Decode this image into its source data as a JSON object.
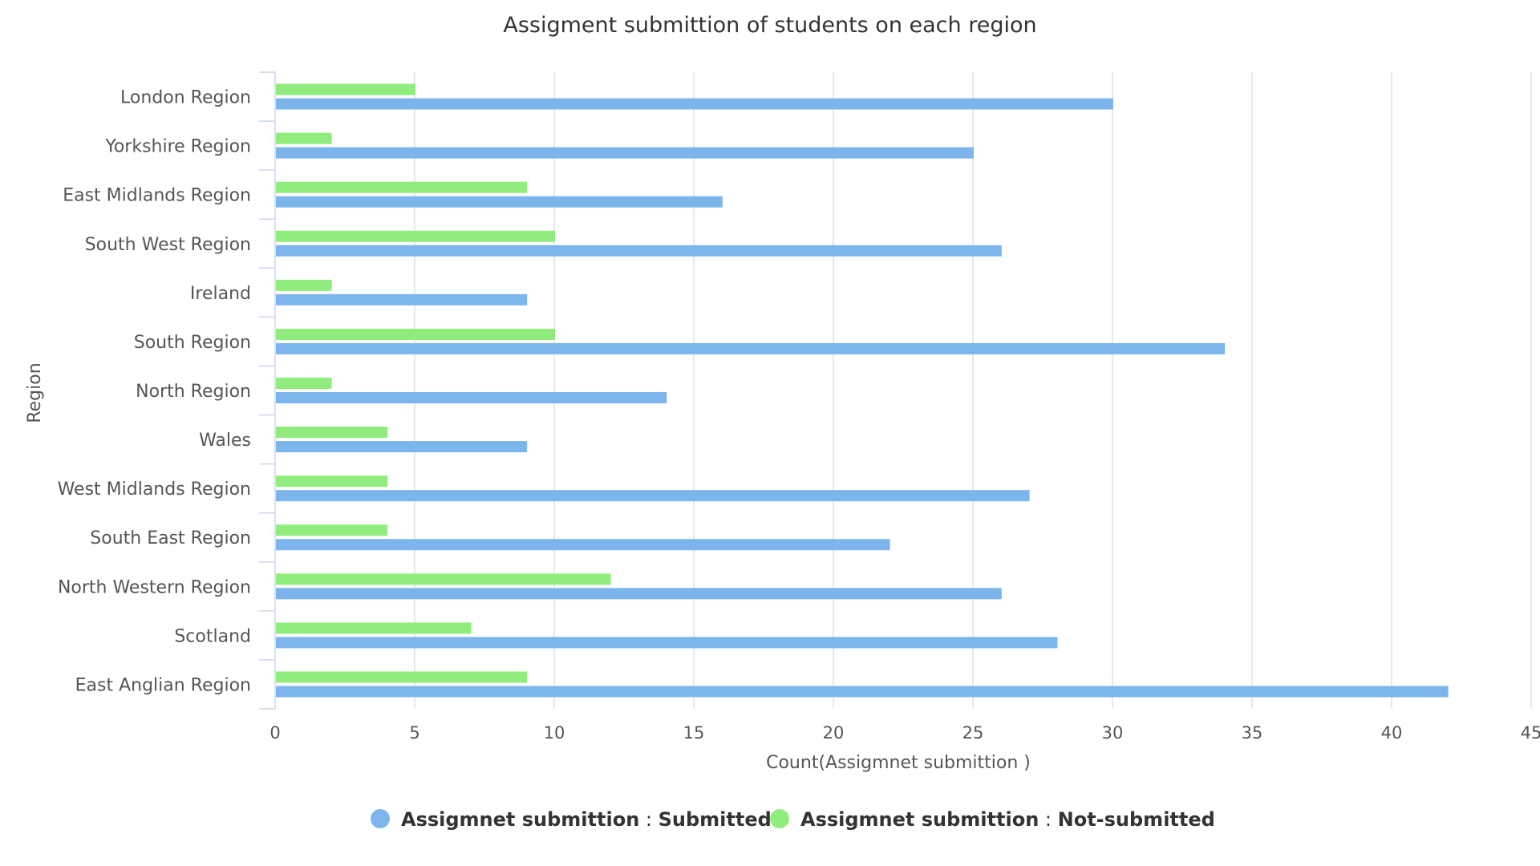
{
  "chart_data": {
    "type": "bar",
    "orientation": "horizontal",
    "title": "Assigment submittion of students on each region",
    "xlabel": "Count(Assigmnet submittion )",
    "ylabel": "Region",
    "xlim": [
      0,
      45
    ],
    "xticks": [
      0,
      5,
      10,
      15,
      20,
      25,
      30,
      35,
      40,
      45
    ],
    "grid": "vertical",
    "legend_position": "bottom",
    "categories": [
      "London Region",
      "Yorkshire Region",
      "East Midlands Region",
      "South West Region",
      "Ireland",
      "South Region",
      "North Region",
      "Wales",
      "West Midlands Region",
      "South East Region",
      "North Western Region",
      "Scotland",
      "East Anglian Region"
    ],
    "series": [
      {
        "name": "Assignmet submittion : Not-submitted",
        "color": "#90ed7d",
        "values": [
          5,
          2,
          9,
          10,
          2,
          10,
          2,
          4,
          4,
          4,
          12,
          7,
          9
        ]
      },
      {
        "name": "Assignmet submittion : Submitted",
        "color": "#7cb5ec",
        "values": [
          30,
          25,
          16,
          26,
          9,
          34,
          14,
          9,
          27,
          22,
          26,
          28,
          42
        ]
      }
    ]
  },
  "legend": {
    "items": [
      {
        "label_main": "Assigmnet submittion",
        "sep": ":",
        "label_value": "Submitted",
        "color": "#7cb5ec"
      },
      {
        "label_main": "Assigmnet submittion",
        "sep": ":",
        "label_value": "Not-submitted",
        "color": "#90ed7d"
      }
    ]
  }
}
